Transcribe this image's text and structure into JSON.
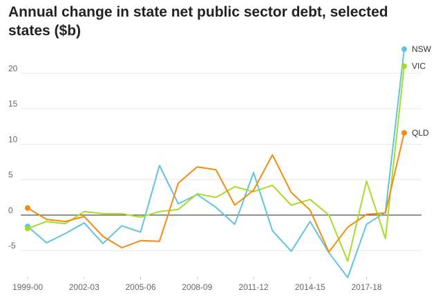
{
  "chart_data": {
    "type": "line",
    "title": "Annual change in state net public sector debt, selected states ($b)",
    "xlabel": "",
    "ylabel": "",
    "ylim": [
      -8.5,
      23.5
    ],
    "y_ticks": [
      -5,
      0,
      5,
      10,
      15,
      20
    ],
    "grid": true,
    "legend": "end-labels",
    "categories": [
      "1999-00",
      "2000-01",
      "2001-02",
      "2002-03",
      "2003-04",
      "2004-05",
      "2005-06",
      "2006-07",
      "2007-08",
      "2008-09",
      "2009-10",
      "2010-11",
      "2011-12",
      "2012-13",
      "2013-14",
      "2014-15",
      "2015-16",
      "2016-17",
      "2017-18",
      "2018-19",
      "2019-20"
    ],
    "x_tick_labels": [
      "1999-00",
      "2002-03",
      "2005-06",
      "2008-09",
      "2011-12",
      "2014-15",
      "2017-18"
    ],
    "series": [
      {
        "name": "NSW",
        "color": "#5bc5e0",
        "values": [
          -1.6,
          -3.9,
          -2.6,
          -1.1,
          -4.0,
          -1.5,
          -2.4,
          7.0,
          1.6,
          2.9,
          1.1,
          -1.3,
          6.0,
          -2.2,
          -5.1,
          -0.9,
          -5.3,
          -8.8,
          -1.3,
          0.4,
          23.4
        ]
      },
      {
        "name": "VIC",
        "color": "#a6dc28",
        "values": [
          -1.9,
          -0.9,
          -1.2,
          0.5,
          0.2,
          0.2,
          -0.3,
          0.5,
          0.8,
          3.0,
          2.5,
          4.0,
          3.3,
          4.2,
          1.4,
          2.2,
          0.0,
          -6.5,
          4.8,
          -3.3,
          21.0
        ]
      },
      {
        "name": "QLD",
        "color": "#f58a0c",
        "values": [
          1.0,
          -0.6,
          -0.9,
          -0.2,
          -3.0,
          -4.6,
          -3.6,
          -3.7,
          4.5,
          6.8,
          6.4,
          1.4,
          3.5,
          8.5,
          3.2,
          0.7,
          -5.2,
          -1.7,
          0.1,
          0.3,
          11.6
        ]
      }
    ],
    "axis_color": "#222222",
    "grid_color": "#e6e6e6"
  }
}
